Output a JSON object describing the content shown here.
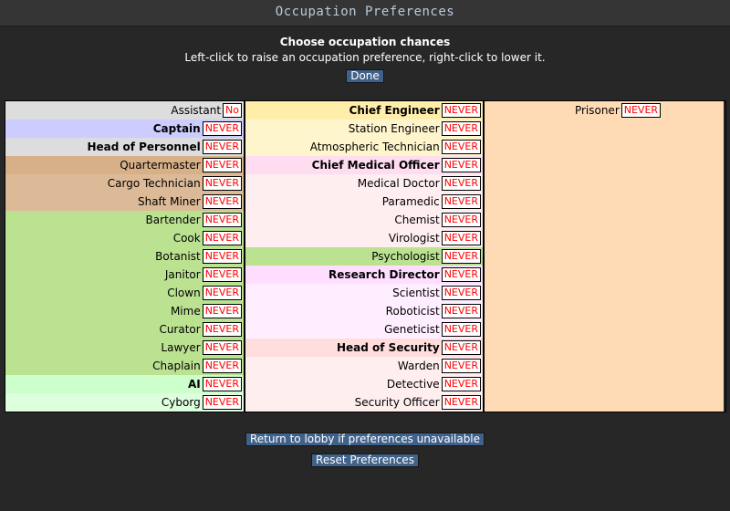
{
  "window": {
    "title": "Occupation Preferences"
  },
  "header": {
    "heading": "Choose occupation chances",
    "subheading": "Left-click to raise an occupation preference, right-click to lower it.",
    "done_label": "Done"
  },
  "columns": [
    [
      {
        "name": "Assistant",
        "pref": "No",
        "head": false,
        "color": "#dddddd"
      },
      {
        "name": "Captain",
        "pref": "NEVER",
        "head": true,
        "color": "#ccccff"
      },
      {
        "name": "Head of Personnel",
        "pref": "NEVER",
        "head": true,
        "color": "#dddddf"
      },
      {
        "name": "Quartermaster",
        "pref": "NEVER",
        "head": false,
        "color": "#d7b088"
      },
      {
        "name": "Cargo Technician",
        "pref": "NEVER",
        "head": false,
        "color": "#dcba97"
      },
      {
        "name": "Shaft Miner",
        "pref": "NEVER",
        "head": false,
        "color": "#dcba97"
      },
      {
        "name": "Bartender",
        "pref": "NEVER",
        "head": false,
        "color": "#bbe291"
      },
      {
        "name": "Cook",
        "pref": "NEVER",
        "head": false,
        "color": "#bbe291"
      },
      {
        "name": "Botanist",
        "pref": "NEVER",
        "head": false,
        "color": "#bbe291"
      },
      {
        "name": "Janitor",
        "pref": "NEVER",
        "head": false,
        "color": "#bbe291"
      },
      {
        "name": "Clown",
        "pref": "NEVER",
        "head": false,
        "color": "#bbe291"
      },
      {
        "name": "Mime",
        "pref": "NEVER",
        "head": false,
        "color": "#bbe291"
      },
      {
        "name": "Curator",
        "pref": "NEVER",
        "head": false,
        "color": "#bbe291"
      },
      {
        "name": "Lawyer",
        "pref": "NEVER",
        "head": false,
        "color": "#bbe291"
      },
      {
        "name": "Chaplain",
        "pref": "NEVER",
        "head": false,
        "color": "#bbe291"
      },
      {
        "name": "AI",
        "pref": "NEVER",
        "head": true,
        "color": "#ccffcc"
      },
      {
        "name": "Cyborg",
        "pref": "NEVER",
        "head": false,
        "color": "#ddffdd"
      }
    ],
    [
      {
        "name": "Chief Engineer",
        "pref": "NEVER",
        "head": true,
        "color": "#ffeeaa"
      },
      {
        "name": "Station Engineer",
        "pref": "NEVER",
        "head": false,
        "color": "#fff5cc"
      },
      {
        "name": "Atmospheric Technician",
        "pref": "NEVER",
        "head": false,
        "color": "#fff5cc"
      },
      {
        "name": "Chief Medical Officer",
        "pref": "NEVER",
        "head": true,
        "color": "#ffddf0"
      },
      {
        "name": "Medical Doctor",
        "pref": "NEVER",
        "head": false,
        "color": "#ffeef0"
      },
      {
        "name": "Paramedic",
        "pref": "NEVER",
        "head": false,
        "color": "#ffeef0"
      },
      {
        "name": "Chemist",
        "pref": "NEVER",
        "head": false,
        "color": "#ffeef0"
      },
      {
        "name": "Virologist",
        "pref": "NEVER",
        "head": false,
        "color": "#ffeef0"
      },
      {
        "name": "Psychologist",
        "pref": "NEVER",
        "head": false,
        "color": "#bbe291"
      },
      {
        "name": "Research Director",
        "pref": "NEVER",
        "head": true,
        "color": "#ffddff"
      },
      {
        "name": "Scientist",
        "pref": "NEVER",
        "head": false,
        "color": "#ffeeff"
      },
      {
        "name": "Roboticist",
        "pref": "NEVER",
        "head": false,
        "color": "#ffeeff"
      },
      {
        "name": "Geneticist",
        "pref": "NEVER",
        "head": false,
        "color": "#ffeeff"
      },
      {
        "name": "Head of Security",
        "pref": "NEVER",
        "head": true,
        "color": "#ffdddd"
      },
      {
        "name": "Warden",
        "pref": "NEVER",
        "head": false,
        "color": "#ffeeee"
      },
      {
        "name": "Detective",
        "pref": "NEVER",
        "head": false,
        "color": "#ffeeee"
      },
      {
        "name": "Security Officer",
        "pref": "NEVER",
        "head": false,
        "color": "#ffeeee"
      }
    ],
    [
      {
        "name": "Prisoner",
        "pref": "NEVER",
        "head": false,
        "color": "#ffdbb5"
      }
    ]
  ],
  "footer": {
    "return_label": "Return to lobby if preferences unavailable",
    "reset_label": "Reset Preferences"
  }
}
